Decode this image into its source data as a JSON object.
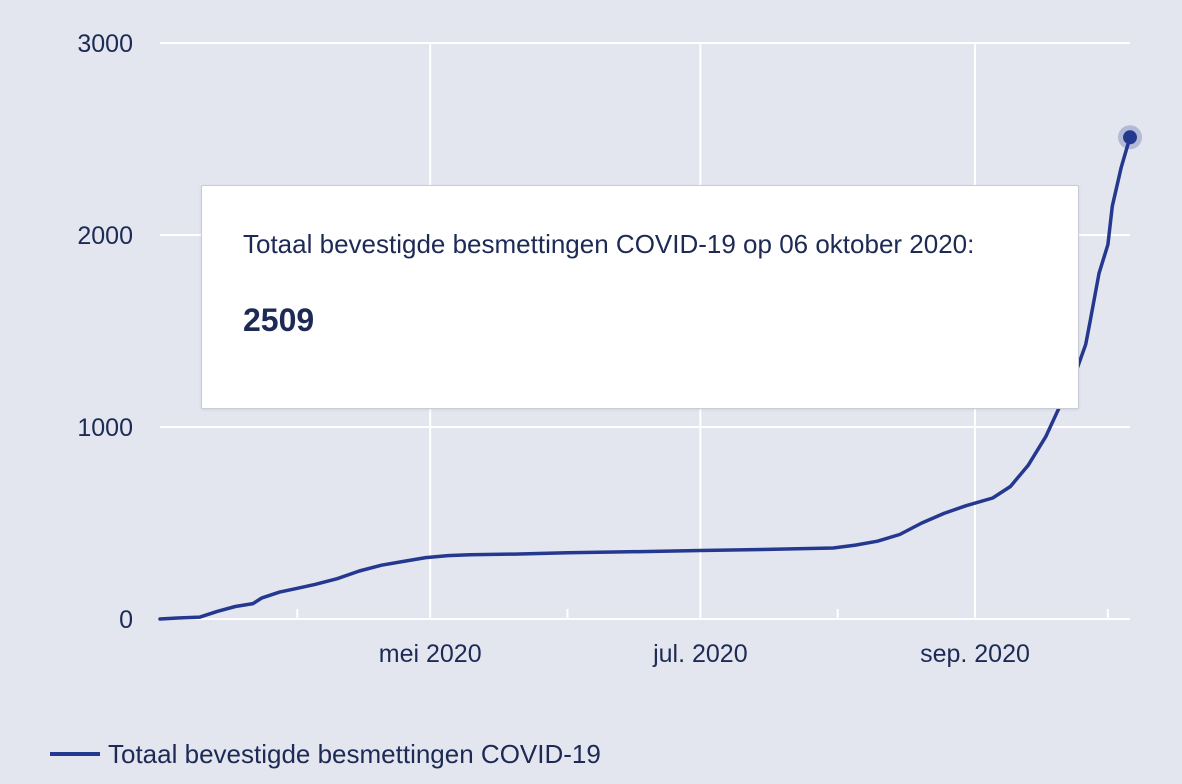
{
  "chart_data": {
    "type": "line",
    "title": "",
    "xlabel": "",
    "ylabel": "",
    "ylim": [
      0,
      3000
    ],
    "xlim": [
      "2020-03-01",
      "2020-10-06"
    ],
    "grid": true,
    "legend_position": "bottom-left",
    "y_ticks": [
      "0",
      "1000",
      "2000",
      "3000"
    ],
    "x_tick_labels": [
      {
        "date": "2020-05-01",
        "label": "mei 2020"
      },
      {
        "date": "2020-07-01",
        "label": "jul. 2020"
      },
      {
        "date": "2020-09-01",
        "label": "sep. 2020"
      }
    ],
    "minor_tick_dates": [
      "2020-04-01",
      "2020-06-01",
      "2020-08-01",
      "2020-10-01"
    ],
    "series": [
      {
        "name": "Totaal bevestigde besmettingen COVID-19",
        "color": "#253890",
        "points": [
          [
            "2020-03-01",
            0
          ],
          [
            "2020-03-05",
            5
          ],
          [
            "2020-03-10",
            10
          ],
          [
            "2020-03-14",
            40
          ],
          [
            "2020-03-18",
            65
          ],
          [
            "2020-03-22",
            80
          ],
          [
            "2020-03-24",
            110
          ],
          [
            "2020-03-28",
            140
          ],
          [
            "2020-04-01",
            160
          ],
          [
            "2020-04-05",
            180
          ],
          [
            "2020-04-10",
            210
          ],
          [
            "2020-04-15",
            250
          ],
          [
            "2020-04-20",
            280
          ],
          [
            "2020-04-25",
            300
          ],
          [
            "2020-04-30",
            320
          ],
          [
            "2020-05-05",
            330
          ],
          [
            "2020-05-10",
            335
          ],
          [
            "2020-05-20",
            338
          ],
          [
            "2020-06-01",
            345
          ],
          [
            "2020-06-15",
            350
          ],
          [
            "2020-07-01",
            357
          ],
          [
            "2020-07-15",
            362
          ],
          [
            "2020-07-31",
            370
          ],
          [
            "2020-08-05",
            385
          ],
          [
            "2020-08-10",
            405
          ],
          [
            "2020-08-15",
            440
          ],
          [
            "2020-08-20",
            500
          ],
          [
            "2020-08-25",
            550
          ],
          [
            "2020-08-30",
            590
          ],
          [
            "2020-09-05",
            630
          ],
          [
            "2020-09-09",
            690
          ],
          [
            "2020-09-13",
            800
          ],
          [
            "2020-09-17",
            950
          ],
          [
            "2020-09-20",
            1100
          ],
          [
            "2020-09-24",
            1300
          ],
          [
            "2020-09-26",
            1430
          ],
          [
            "2020-09-27",
            1550
          ],
          [
            "2020-09-29",
            1800
          ],
          [
            "2020-10-01",
            1950
          ],
          [
            "2020-10-02",
            2150
          ],
          [
            "2020-10-04",
            2350
          ],
          [
            "2020-10-06",
            2509
          ]
        ]
      }
    ],
    "tooltip": {
      "title": "Totaal bevestigde besmettingen COVID-19 op 06 oktober 2020:",
      "value": "2509"
    }
  },
  "legend": {
    "label": "Totaal bevestigde besmettingen COVID-19"
  },
  "colors": {
    "background": "#e3e6ee",
    "grid": "#ffffff",
    "line": "#253890",
    "text": "#1d2a55"
  }
}
